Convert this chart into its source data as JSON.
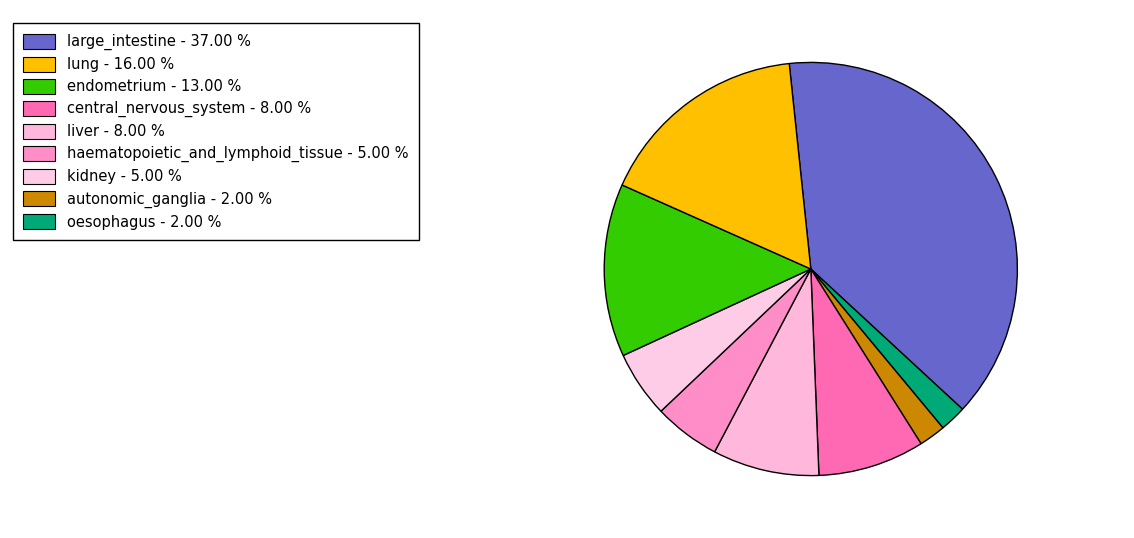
{
  "labels": [
    "large_intestine",
    "lung",
    "endometrium",
    "central_nervous_system",
    "liver",
    "haematopoietic_and_lymphoid_tissue",
    "kidney",
    "autonomic_ganglia",
    "oesophagus"
  ],
  "values": [
    37.0,
    16.0,
    13.0,
    8.0,
    8.0,
    5.0,
    5.0,
    2.0,
    2.0
  ],
  "colors": [
    "#6666CC",
    "#FFC000",
    "#33CC00",
    "#FF69B4",
    "#FFB8DC",
    "#FF8EC8",
    "#FFCCE8",
    "#CC8800",
    "#00AA77"
  ],
  "legend_labels": [
    "large_intestine - 37.00 %",
    "lung - 16.00 %",
    "endometrium - 13.00 %",
    "central_nervous_system - 8.00 %",
    "liver - 8.00 %",
    "haematopoietic_and_lymphoid_tissue - 5.00 %",
    "kidney - 5.00 %",
    "autonomic_ganglia - 2.00 %",
    "oesophagus - 2.00 %"
  ],
  "figsize": [
    11.34,
    5.38
  ],
  "dpi": 100,
  "startangle": 96
}
